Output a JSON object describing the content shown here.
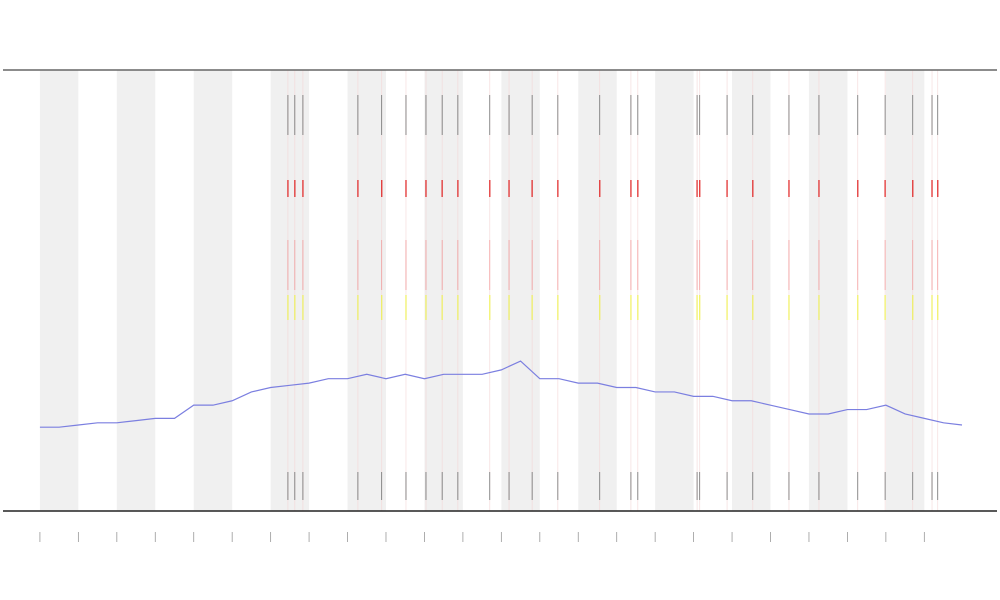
{
  "chart_data": {
    "type": "line",
    "xlim": [
      -0.96,
      24.89
    ],
    "ylim": [
      0,
      100
    ],
    "xticks": [
      0,
      1,
      2,
      3,
      4,
      5,
      6,
      7,
      8,
      9,
      10,
      11,
      12,
      13,
      14,
      15,
      16,
      17,
      18,
      19,
      20,
      21,
      22,
      23
    ],
    "bands": [
      [
        0,
        1
      ],
      [
        2,
        3
      ],
      [
        4,
        5
      ],
      [
        6,
        7
      ],
      [
        8,
        9
      ],
      [
        10,
        11
      ],
      [
        12,
        13
      ],
      [
        14,
        15
      ],
      [
        16,
        17
      ],
      [
        18,
        19
      ],
      [
        20,
        21
      ],
      [
        22,
        23
      ]
    ],
    "events": [
      6.45,
      6.63,
      6.84,
      8.27,
      8.89,
      9.52,
      10.04,
      10.46,
      10.87,
      11.7,
      12.2,
      12.8,
      13.47,
      14.56,
      15.37,
      15.55,
      17.09,
      17.16,
      17.87,
      18.54,
      19.48,
      20.26,
      21.27,
      21.98,
      22.7,
      23.2,
      23.35
    ],
    "series": [
      {
        "color": "#7b7fe0",
        "x": [
          0,
          0.5,
          1,
          1.5,
          2,
          2.5,
          3,
          3.5,
          4,
          4.5,
          5,
          5.5,
          6,
          6.5,
          7,
          7.5,
          8,
          8.5,
          9,
          9.5,
          10,
          10.5,
          11,
          11.5,
          12,
          12.5,
          13,
          13.5,
          14,
          14.5,
          15,
          15.5,
          16,
          16.5,
          17,
          17.5,
          18,
          18.5,
          19,
          19.5,
          20,
          20.5,
          21,
          21.5,
          22,
          22.5,
          23,
          23.5,
          23.98
        ],
        "values": [
          19,
          19,
          19.5,
          20,
          20,
          20.5,
          21,
          21,
          24,
          24,
          25,
          27,
          28,
          28.5,
          29,
          30,
          30,
          31,
          30,
          31,
          30,
          31,
          31,
          31,
          32,
          34,
          30,
          30,
          29,
          29,
          28,
          28,
          27,
          27,
          26,
          26,
          25,
          25,
          24,
          23,
          22,
          22,
          23,
          23,
          24,
          22,
          21,
          20,
          19.5
        ]
      }
    ]
  }
}
